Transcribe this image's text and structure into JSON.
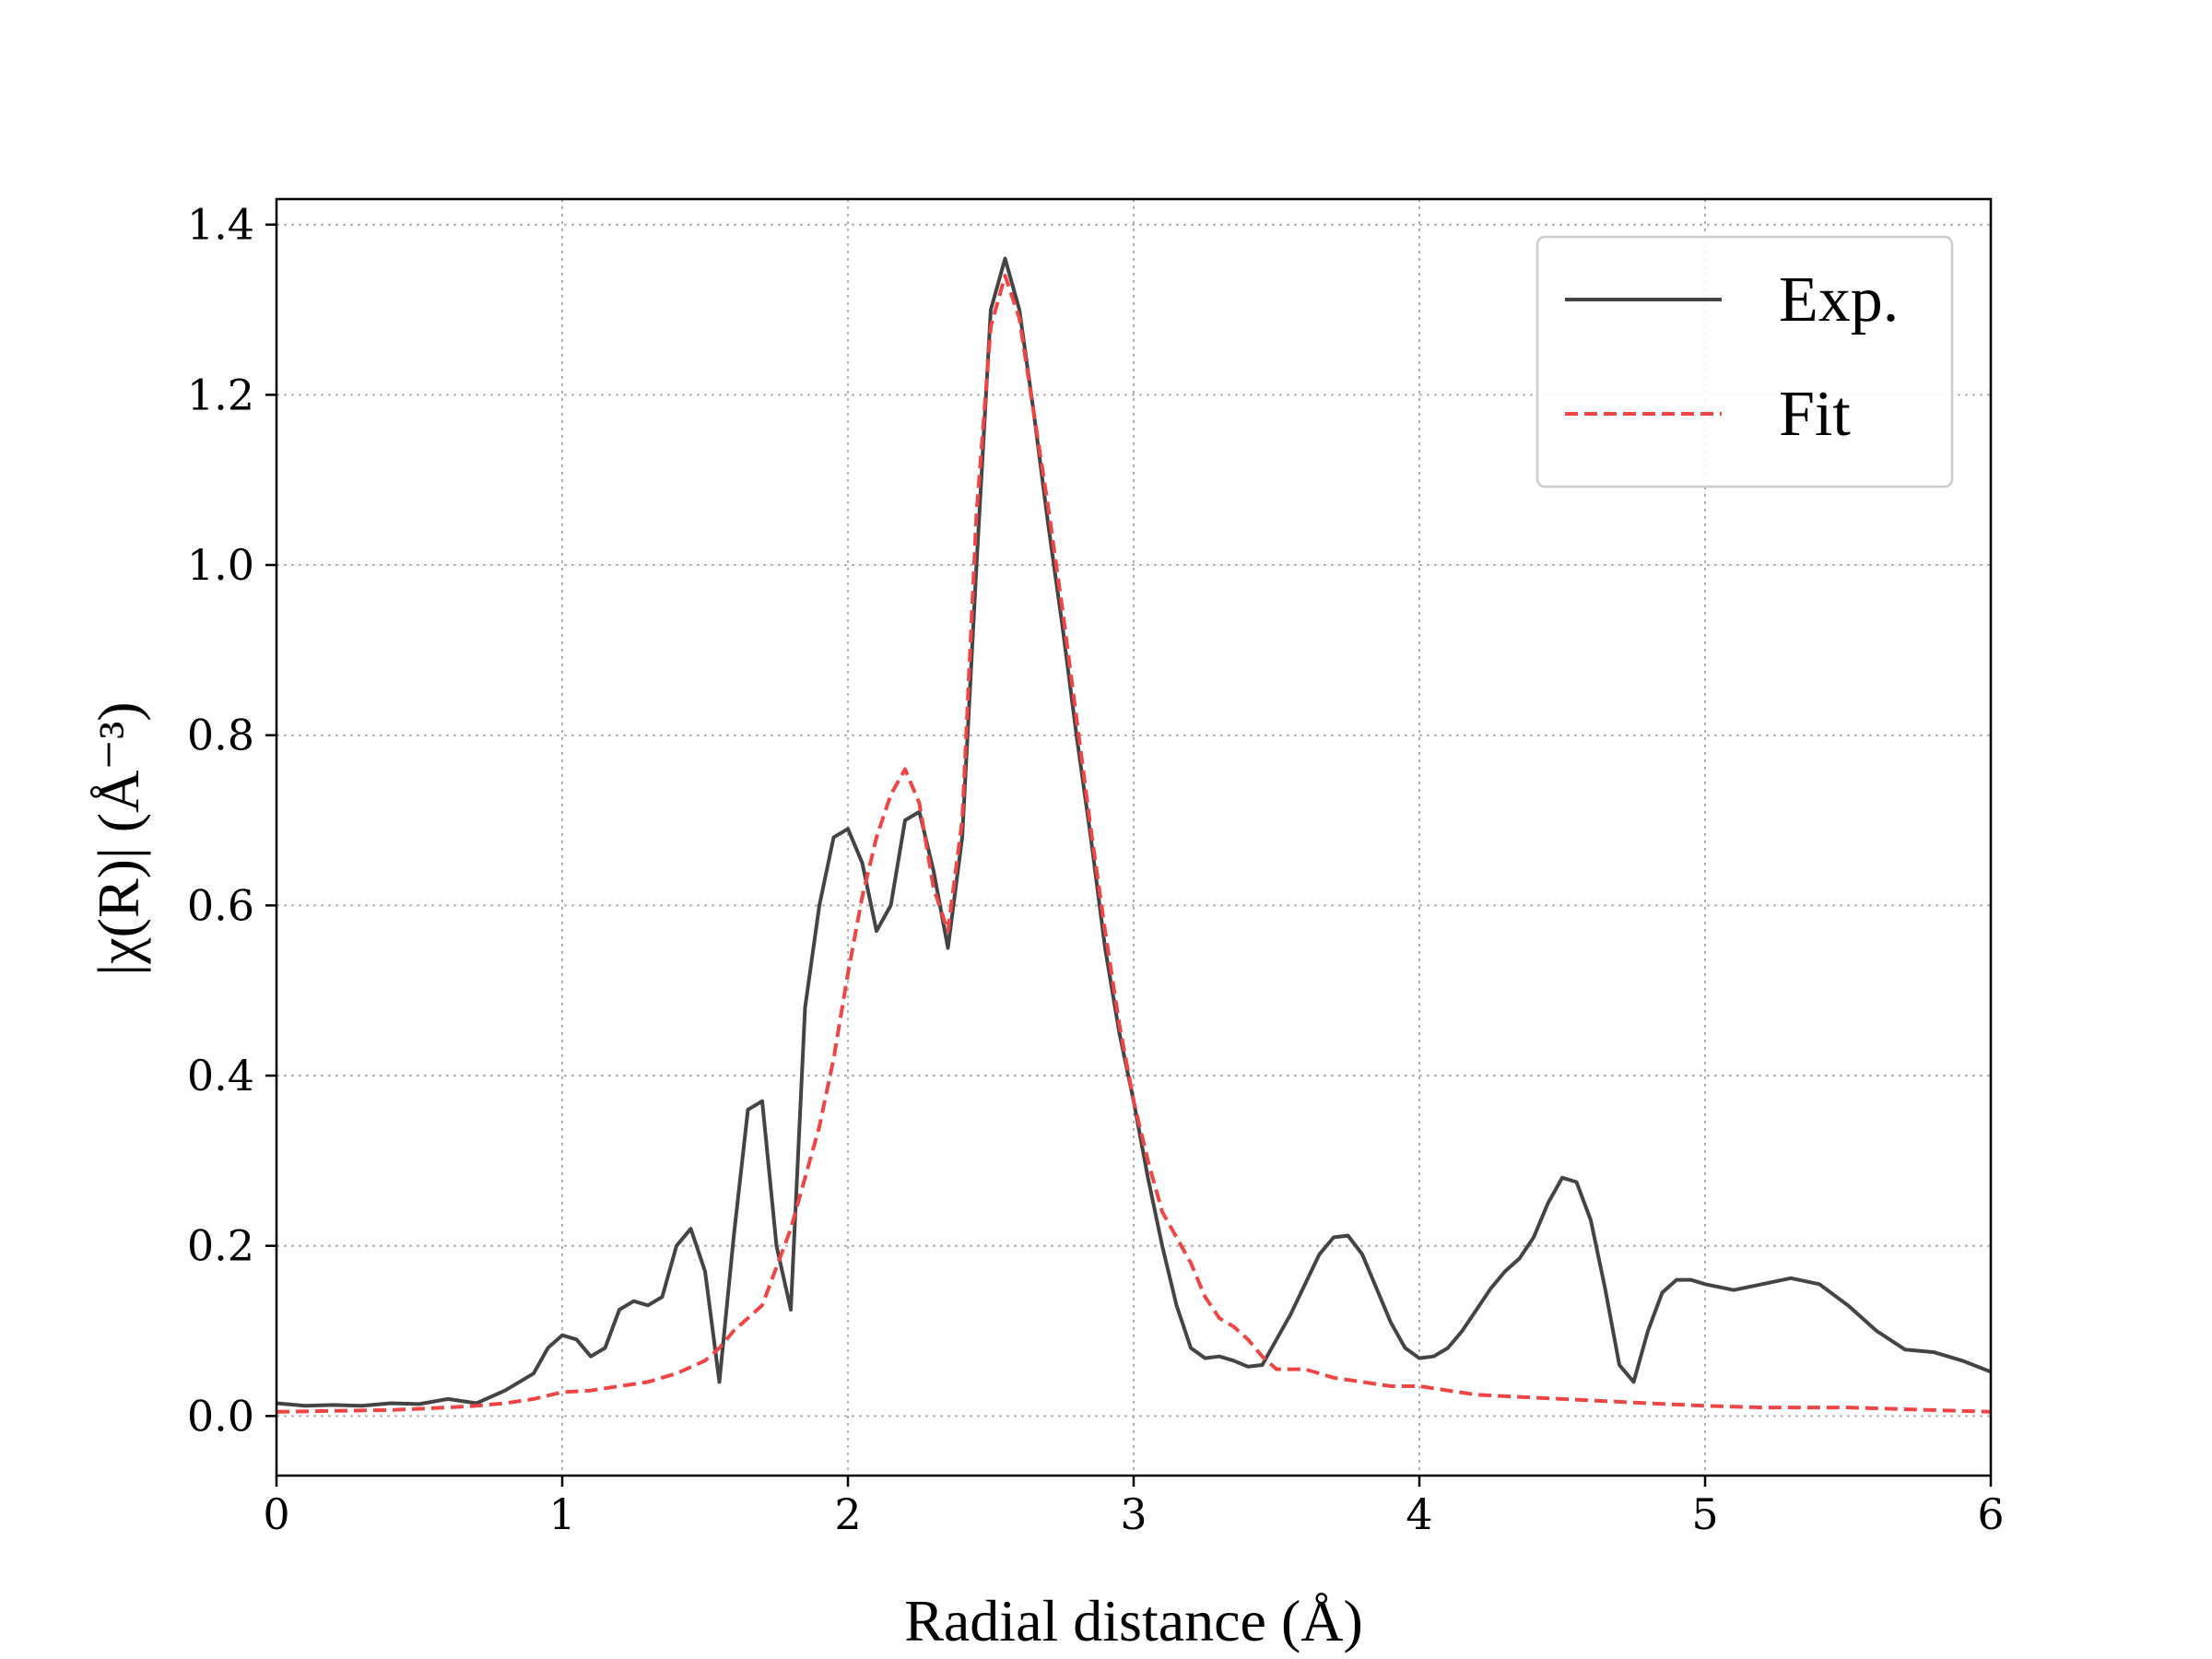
{
  "chart_data": {
    "type": "line",
    "title": "",
    "xlabel": "Radial distance (Å)",
    "ylabel": "|χ(R)| (Å⁻³)",
    "xlim": [
      0,
      6
    ],
    "ylim": [
      -0.07,
      1.43
    ],
    "xticks": [
      0,
      1,
      2,
      3,
      4,
      5,
      6
    ],
    "xtick_labels": [
      "0",
      "1",
      "2",
      "3",
      "4",
      "5",
      "6"
    ],
    "yticks": [
      0.0,
      0.2,
      0.4,
      0.6,
      0.8,
      1.0,
      1.2,
      1.4
    ],
    "ytick_labels": [
      "0.0",
      "0.2",
      "0.4",
      "0.6",
      "0.8",
      "1.0",
      "1.2",
      "1.4"
    ],
    "grid": true,
    "legend_position": "top-right",
    "series": [
      {
        "name": "Exp.",
        "color": "#444444",
        "style": "solid",
        "x": [
          0.0,
          0.1,
          0.2,
          0.3,
          0.4,
          0.5,
          0.6,
          0.7,
          0.8,
          0.9,
          0.95,
          1.0,
          1.05,
          1.1,
          1.15,
          1.2,
          1.25,
          1.3,
          1.35,
          1.4,
          1.45,
          1.5,
          1.55,
          1.6,
          1.65,
          1.7,
          1.75,
          1.8,
          1.85,
          1.9,
          1.95,
          2.0,
          2.05,
          2.1,
          2.15,
          2.2,
          2.25,
          2.3,
          2.35,
          2.4,
          2.45,
          2.5,
          2.55,
          2.6,
          2.65,
          2.7,
          2.75,
          2.8,
          2.85,
          2.9,
          2.95,
          3.0,
          3.05,
          3.1,
          3.15,
          3.2,
          3.25,
          3.3,
          3.35,
          3.4,
          3.45,
          3.5,
          3.55,
          3.6,
          3.65,
          3.7,
          3.75,
          3.8,
          3.85,
          3.9,
          3.95,
          4.0,
          4.05,
          4.1,
          4.15,
          4.2,
          4.25,
          4.3,
          4.35,
          4.4,
          4.45,
          4.5,
          4.55,
          4.6,
          4.65,
          4.7,
          4.75,
          4.8,
          4.85,
          4.9,
          4.95,
          5.0,
          5.1,
          5.2,
          5.3,
          5.4,
          5.5,
          5.6,
          5.7,
          5.8,
          5.9,
          6.0
        ],
        "y": [
          0.015,
          0.012,
          0.013,
          0.012,
          0.015,
          0.014,
          0.02,
          0.015,
          0.03,
          0.05,
          0.08,
          0.095,
          0.09,
          0.07,
          0.08,
          0.125,
          0.135,
          0.13,
          0.14,
          0.2,
          0.22,
          0.17,
          0.04,
          0.21,
          0.36,
          0.37,
          0.2,
          0.125,
          0.48,
          0.6,
          0.68,
          0.69,
          0.65,
          0.57,
          0.6,
          0.7,
          0.71,
          0.64,
          0.55,
          0.68,
          1.0,
          1.3,
          1.36,
          1.3,
          1.18,
          1.05,
          0.93,
          0.8,
          0.68,
          0.55,
          0.45,
          0.37,
          0.28,
          0.2,
          0.13,
          0.08,
          0.068,
          0.07,
          0.065,
          0.058,
          0.06,
          0.09,
          0.12,
          0.155,
          0.19,
          0.21,
          0.212,
          0.19,
          0.15,
          0.11,
          0.08,
          0.068,
          0.07,
          0.08,
          0.1,
          0.125,
          0.15,
          0.17,
          0.185,
          0.21,
          0.25,
          0.28,
          0.275,
          0.23,
          0.15,
          0.06,
          0.04,
          0.1,
          0.145,
          0.16,
          0.16,
          0.155,
          0.148,
          0.155,
          0.162,
          0.155,
          0.13,
          0.1,
          0.078,
          0.075,
          0.065,
          0.052
        ]
      },
      {
        "name": "Fit",
        "color": "#f04545",
        "style": "dashed",
        "x": [
          0.0,
          0.2,
          0.4,
          0.6,
          0.7,
          0.8,
          0.9,
          1.0,
          1.1,
          1.2,
          1.3,
          1.4,
          1.5,
          1.55,
          1.6,
          1.7,
          1.8,
          1.9,
          1.95,
          2.0,
          2.05,
          2.1,
          2.15,
          2.2,
          2.25,
          2.3,
          2.35,
          2.4,
          2.45,
          2.5,
          2.55,
          2.6,
          2.65,
          2.7,
          2.75,
          2.8,
          2.85,
          2.9,
          2.95,
          3.0,
          3.05,
          3.1,
          3.15,
          3.2,
          3.25,
          3.3,
          3.35,
          3.4,
          3.45,
          3.5,
          3.6,
          3.7,
          3.8,
          3.9,
          4.0,
          4.2,
          4.5,
          4.8,
          5.0,
          5.2,
          5.5,
          6.0
        ],
        "y": [
          0.005,
          0.006,
          0.007,
          0.01,
          0.012,
          0.015,
          0.02,
          0.028,
          0.03,
          0.035,
          0.04,
          0.05,
          0.065,
          0.08,
          0.1,
          0.13,
          0.22,
          0.34,
          0.42,
          0.52,
          0.61,
          0.68,
          0.73,
          0.76,
          0.72,
          0.62,
          0.57,
          0.7,
          1.06,
          1.28,
          1.34,
          1.29,
          1.18,
          1.07,
          0.95,
          0.82,
          0.69,
          0.57,
          0.46,
          0.37,
          0.3,
          0.24,
          0.21,
          0.18,
          0.14,
          0.115,
          0.105,
          0.09,
          0.07,
          0.055,
          0.055,
          0.045,
          0.04,
          0.035,
          0.035,
          0.025,
          0.02,
          0.015,
          0.012,
          0.01,
          0.01,
          0.005
        ]
      }
    ]
  }
}
